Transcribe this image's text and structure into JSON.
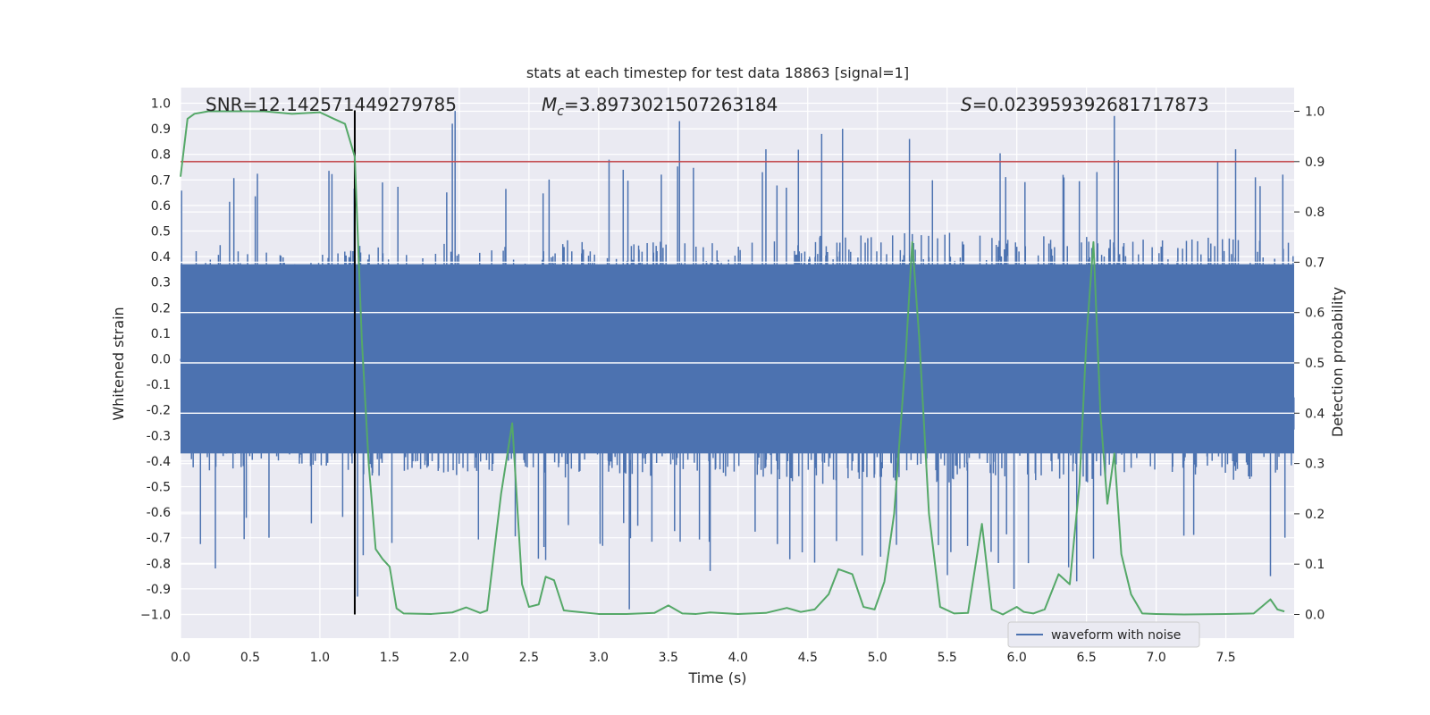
{
  "chart_data": {
    "type": "line",
    "title": "stats at each timestep for test data 18863 [signal=1]",
    "xlabel": "Time (s)",
    "ylabel_left": "Whitened strain",
    "ylabel_right": "Detection probability",
    "xlim": [
      0,
      7.99
    ],
    "ylim_left": [
      -1.0,
      1.0
    ],
    "ylim_right": [
      0.0,
      1.0
    ],
    "x_ticks": [
      "0.0",
      "0.5",
      "1.0",
      "1.5",
      "2.0",
      "2.5",
      "3.0",
      "3.5",
      "4.0",
      "4.5",
      "5.0",
      "5.5",
      "6.0",
      "6.5",
      "7.0",
      "7.5"
    ],
    "y_left_ticks": [
      "1.0",
      "0.9",
      "0.8",
      "0.7",
      "0.6",
      "0.5",
      "0.4",
      "0.3",
      "0.2",
      "0.1",
      "0.0",
      "-0.1",
      "-0.2",
      "-0.3",
      "-0.4",
      "-0.5",
      "-0.6",
      "-0.7",
      "-0.8",
      "-0.9",
      "−1.0"
    ],
    "y_right_ticks": [
      "1.0",
      "0.9",
      "0.8",
      "0.7",
      "0.6",
      "0.5",
      "0.4",
      "0.3",
      "0.2",
      "0.1",
      "0.0"
    ],
    "grid": true,
    "legend": {
      "placement": "bottom-right",
      "entries": [
        "waveform with noise"
      ]
    },
    "annotations": {
      "snr": "SNR=12.142571449279785",
      "mc_symbol": "M",
      "mc_sub": "c",
      "mc_value": "=3.8973021507263184",
      "s_symbol": "S",
      "s_value": "=0.023959392681717873"
    },
    "threshold": 0.9,
    "marker_time": 1.25,
    "colors": {
      "waveform": "#4c72b0",
      "probability": "#55a868",
      "threshold": "#c44e52",
      "marker": "#000000",
      "background": "#eaeaf2",
      "grid": "#ffffff"
    },
    "waveform": {
      "name": "waveform with noise",
      "description": "dense noisy strain; envelope values (data units) per time",
      "envelope_t": [
        0.0,
        0.25,
        0.5,
        0.75,
        1.0,
        1.25,
        1.5,
        1.75,
        2.0,
        2.25,
        2.5,
        2.75,
        3.0,
        3.25,
        3.5,
        3.75,
        4.0,
        4.25,
        4.5,
        4.75,
        5.0,
        5.25,
        5.5,
        5.75,
        6.0,
        6.25,
        6.5,
        6.75,
        7.0,
        7.25,
        7.5,
        7.75,
        7.99
      ],
      "envelope_amp": [
        0.55,
        0.6,
        0.55,
        0.58,
        0.56,
        0.6,
        0.62,
        0.58,
        0.62,
        0.58,
        0.6,
        0.62,
        0.6,
        0.6,
        0.62,
        0.6,
        0.62,
        0.62,
        0.65,
        0.66,
        0.64,
        0.66,
        0.66,
        0.64,
        0.63,
        0.64,
        0.66,
        0.66,
        0.62,
        0.62,
        0.64,
        0.62,
        0.6
      ],
      "spikes": [
        {
          "t": 0.25,
          "v": -0.82
        },
        {
          "t": 1.27,
          "v": -0.93
        },
        {
          "t": 1.95,
          "v": 0.92
        },
        {
          "t": 1.97,
          "v": 0.97
        },
        {
          "t": 3.22,
          "v": -0.98
        },
        {
          "t": 3.58,
          "v": 0.93
        },
        {
          "t": 3.8,
          "v": -0.83
        },
        {
          "t": 4.2,
          "v": 0.82
        },
        {
          "t": 4.6,
          "v": 0.88
        },
        {
          "t": 4.75,
          "v": 0.9
        },
        {
          "t": 5.23,
          "v": 0.86
        },
        {
          "t": 5.98,
          "v": -0.9
        },
        {
          "t": 6.43,
          "v": -0.87
        },
        {
          "t": 6.7,
          "v": 0.95
        },
        {
          "t": 7.57,
          "v": 0.82
        },
        {
          "t": 7.82,
          "v": -0.85
        }
      ]
    },
    "probability": {
      "t": [
        0.0,
        0.05,
        0.1,
        0.2,
        0.4,
        0.6,
        0.8,
        1.0,
        1.1,
        1.18,
        1.25,
        1.3,
        1.35,
        1.4,
        1.45,
        1.5,
        1.55,
        1.6,
        1.8,
        1.95,
        2.05,
        2.15,
        2.2,
        2.3,
        2.38,
        2.45,
        2.5,
        2.57,
        2.62,
        2.68,
        2.75,
        2.85,
        3.0,
        3.2,
        3.4,
        3.5,
        3.6,
        3.7,
        3.8,
        4.0,
        4.2,
        4.35,
        4.45,
        4.55,
        4.65,
        4.72,
        4.82,
        4.9,
        4.98,
        5.05,
        5.12,
        5.2,
        5.25,
        5.3,
        5.37,
        5.45,
        5.55,
        5.65,
        5.75,
        5.82,
        5.9,
        6.0,
        6.05,
        6.12,
        6.2,
        6.3,
        6.38,
        6.45,
        6.5,
        6.55,
        6.6,
        6.65,
        6.7,
        6.75,
        6.82,
        6.9,
        7.0,
        7.2,
        7.5,
        7.7,
        7.82,
        7.87,
        7.92
      ],
      "p": [
        0.87,
        0.985,
        0.995,
        1.0,
        1.0,
        1.0,
        0.995,
        0.998,
        0.985,
        0.975,
        0.91,
        0.55,
        0.3,
        0.13,
        0.11,
        0.095,
        0.012,
        0.002,
        0.001,
        0.004,
        0.014,
        0.003,
        0.008,
        0.24,
        0.38,
        0.06,
        0.015,
        0.02,
        0.075,
        0.068,
        0.008,
        0.005,
        0.001,
        0.001,
        0.003,
        0.018,
        0.002,
        0.001,
        0.004,
        0.001,
        0.003,
        0.013,
        0.005,
        0.01,
        0.04,
        0.09,
        0.08,
        0.015,
        0.01,
        0.065,
        0.2,
        0.5,
        0.74,
        0.55,
        0.2,
        0.015,
        0.002,
        0.003,
        0.18,
        0.01,
        0.0,
        0.015,
        0.005,
        0.002,
        0.01,
        0.08,
        0.06,
        0.26,
        0.55,
        0.74,
        0.4,
        0.22,
        0.32,
        0.12,
        0.04,
        0.002,
        0.001,
        0.0,
        0.001,
        0.002,
        0.03,
        0.01,
        0.006
      ]
    }
  }
}
